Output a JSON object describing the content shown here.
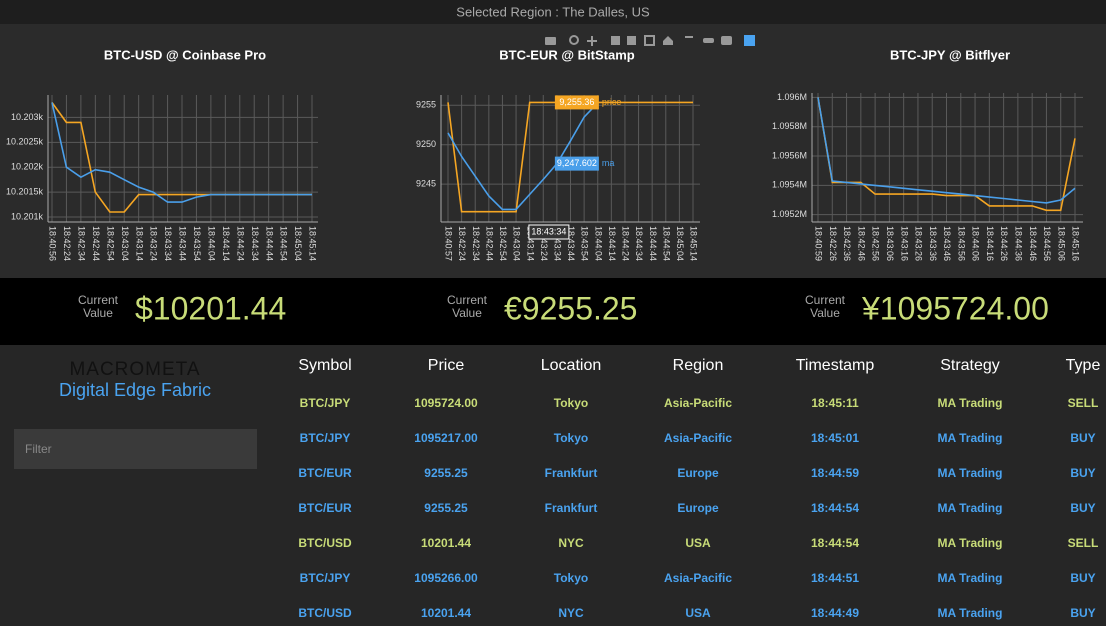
{
  "header": {
    "title": "Selected Region : The Dalles, US"
  },
  "chart_data": [
    {
      "type": "line",
      "title": "BTC-USD @ Coinbase Pro",
      "categories": [
        "18:40:56",
        "18:42:24",
        "18:42:34",
        "18:42:44",
        "18:42:54",
        "18:43:04",
        "18:43:14",
        "18:43:24",
        "18:43:34",
        "18:43:44",
        "18:43:54",
        "18:44:04",
        "18:44:14",
        "18:44:24",
        "18:44:34",
        "18:44:44",
        "18:44:54",
        "18:45:04",
        "18:45:14"
      ],
      "series": [
        {
          "color": "#f5a623",
          "values": [
            10203.3,
            10202.9,
            10202.9,
            10201.5,
            10201.1,
            10201.1,
            10201.45,
            10201.45,
            10201.45,
            10201.45,
            10201.45,
            10201.45,
            10201.45,
            10201.45,
            10201.45,
            10201.45,
            10201.45,
            10201.45,
            10201.45
          ]
        },
        {
          "color": "#4a9fea",
          "values": [
            10203.3,
            10202.0,
            10201.8,
            10201.95,
            10201.9,
            10201.75,
            10201.6,
            10201.5,
            10201.3,
            10201.3,
            10201.4,
            10201.45,
            10201.45,
            10201.45,
            10201.45,
            10201.45,
            10201.45,
            10201.45,
            10201.45
          ]
        }
      ],
      "ylim": [
        10200.9,
        10203.45
      ],
      "yticks": [
        {
          "value": 10201,
          "label": "10.201k"
        },
        {
          "value": 10201.5,
          "label": "10.2015k"
        },
        {
          "value": 10202,
          "label": "10.202k"
        },
        {
          "value": 10202.5,
          "label": "10.2025k"
        },
        {
          "value": 10203,
          "label": "10.203k"
        }
      ],
      "grid": true
    },
    {
      "type": "line",
      "title": "BTC-EUR @ BitStamp",
      "categories": [
        "18:40:57",
        "18:42:24",
        "18:42:34",
        "18:42:44",
        "18:42:54",
        "18:43:04",
        "18:43:14",
        "18:43:24",
        "18:43:34",
        "18:43:44",
        "18:43:54",
        "18:44:04",
        "18:44:14",
        "18:44:24",
        "18:44:34",
        "18:44:44",
        "18:44:54",
        "18:45:04",
        "18:45:14"
      ],
      "series": [
        {
          "name": "price",
          "color": "#f5a623",
          "values": [
            9255.36,
            9241.5,
            9241.5,
            9241.5,
            9241.5,
            9241.5,
            9255.36,
            9255.36,
            9255.36,
            9255.36,
            9255.36,
            9255.36,
            9255.36,
            9255.36,
            9255.36,
            9255.36,
            9255.36,
            9255.36,
            9255.36
          ]
        },
        {
          "name": "ma",
          "color": "#4a9fea",
          "values": [
            9251.5,
            9248.5,
            9246,
            9243.5,
            9241.8,
            9241.8,
            9243.7,
            9245.6,
            9247.602,
            9250.5,
            9253.5,
            9255.3,
            null,
            null,
            null,
            null,
            null,
            null,
            null
          ]
        }
      ],
      "ylim": [
        9240.2,
        9256.3
      ],
      "yticks": [
        9245,
        9250,
        9255
      ],
      "grid": true,
      "hover": {
        "x": "18:43:34",
        "values": [
          9255.36,
          9247.602
        ],
        "value_labels": [
          "9,255.36",
          "9,247.602"
        ]
      }
    },
    {
      "type": "line",
      "title": "BTC-JPY @ Bitflyer",
      "categories": [
        "18:40:59",
        "18:42:26",
        "18:42:36",
        "18:42:46",
        "18:42:56",
        "18:43:06",
        "18:43:16",
        "18:43:26",
        "18:43:36",
        "18:43:46",
        "18:43:56",
        "18:44:06",
        "18:44:16",
        "18:44:26",
        "18:44:36",
        "18:44:46",
        "18:44:56",
        "18:45:06",
        "18:45:16"
      ],
      "series": [
        {
          "color": "#f5a623",
          "values": [
            1096000,
            1095420,
            1095420,
            1095420,
            1095340,
            1095340,
            1095340,
            1095340,
            1095340,
            1095330,
            1095330,
            1095330,
            1095260,
            1095260,
            1095260,
            1095260,
            1095230,
            1095230,
            1095720
          ]
        },
        {
          "color": "#4a9fea",
          "values": [
            1096000,
            1095430,
            1095420,
            1095410,
            1095400,
            1095390,
            1095380,
            1095370,
            1095360,
            1095350,
            1095340,
            1095330,
            1095320,
            1095310,
            1095300,
            1095290,
            1095280,
            1095300,
            1095380
          ]
        }
      ],
      "ylim": [
        1095150,
        1096030
      ],
      "yticks": [
        {
          "value": 1095200,
          "label": "1.0952M"
        },
        {
          "value": 1095400,
          "label": "1.0954M"
        },
        {
          "value": 1095600,
          "label": "1.0956M"
        },
        {
          "value": 1095800,
          "label": "1.0958M"
        },
        {
          "value": 1096000,
          "label": "1.096M"
        }
      ],
      "grid": true
    }
  ],
  "current_values": [
    {
      "label": "Current Value",
      "value": "$10201.44"
    },
    {
      "label": "Current Value",
      "value": "€9255.25"
    },
    {
      "label": "Current Value",
      "value": "¥1095724.00"
    }
  ],
  "sidebar": {
    "brand": "MACROMETA",
    "tagline": "Digital Edge Fabric",
    "filter_placeholder": "Filter"
  },
  "table": {
    "columns": [
      "Symbol",
      "Price",
      "Location",
      "Region",
      "Timestamp",
      "Strategy",
      "Type"
    ],
    "rows": [
      [
        "BTC/JPY",
        "1095724.00",
        "Tokyo",
        "Asia-Pacific",
        "18:45:11",
        "MA Trading",
        "SELL"
      ],
      [
        "BTC/JPY",
        "1095217.00",
        "Tokyo",
        "Asia-Pacific",
        "18:45:01",
        "MA Trading",
        "BUY"
      ],
      [
        "BTC/EUR",
        "9255.25",
        "Frankfurt",
        "Europe",
        "18:44:59",
        "MA Trading",
        "BUY"
      ],
      [
        "BTC/EUR",
        "9255.25",
        "Frankfurt",
        "Europe",
        "18:44:54",
        "MA Trading",
        "BUY"
      ],
      [
        "BTC/USD",
        "10201.44",
        "NYC",
        "USA",
        "18:44:54",
        "MA Trading",
        "SELL"
      ],
      [
        "BTC/JPY",
        "1095266.00",
        "Tokyo",
        "Asia-Pacific",
        "18:44:51",
        "MA Trading",
        "BUY"
      ],
      [
        "BTC/USD",
        "10201.44",
        "NYC",
        "USA",
        "18:44:49",
        "MA Trading",
        "BUY"
      ]
    ],
    "row_colors": [
      "#c8dc78",
      "#4aa3f0",
      "#4aa3f0",
      "#4aa3f0",
      "#c8dc78",
      "#4aa3f0",
      "#4aa3f0"
    ]
  }
}
